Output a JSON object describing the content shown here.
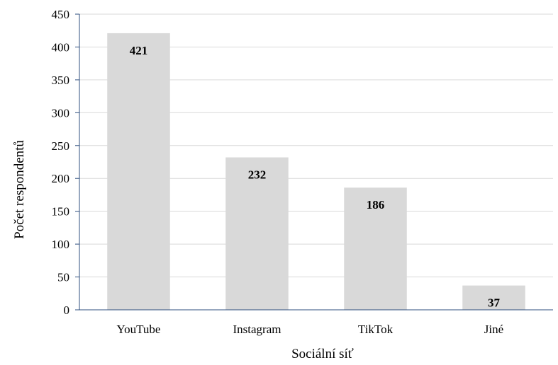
{
  "chart_data": {
    "type": "bar",
    "title": "",
    "xlabel": "Sociální síť",
    "ylabel": "Počet respondentů",
    "categories": [
      "YouTube",
      "Instagram",
      "TikTok",
      "Jiné"
    ],
    "values": [
      421,
      232,
      186,
      37
    ],
    "data_labels": [
      "421",
      "232",
      "186",
      "37"
    ],
    "ylim": [
      0,
      450
    ],
    "yticks": [
      0,
      50,
      100,
      150,
      200,
      250,
      300,
      350,
      400,
      450
    ],
    "grid": "horizontal",
    "legend": "none",
    "colors": {
      "bar": "#d9d9d9",
      "axis": "#2f4f7f",
      "grid": "#d9d9d9",
      "text": "#000000"
    }
  }
}
